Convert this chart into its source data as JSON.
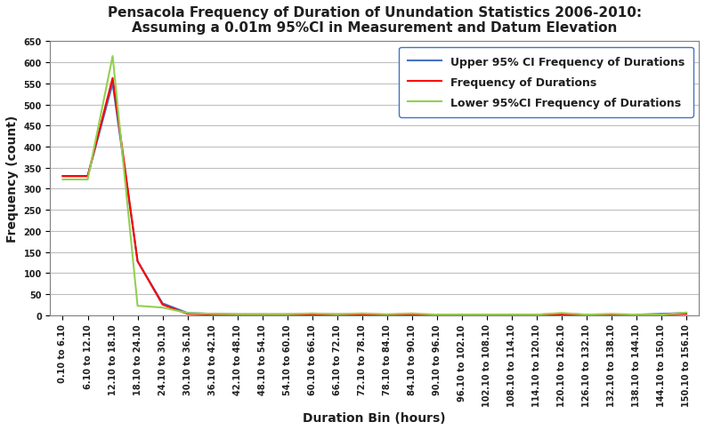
{
  "title": "Pensacola Frequency of Duration of Unundation Statistics 2006-2010:\nAssuming a 0.01m 95%CI in Measurement and Datum Elevation",
  "xlabel": "Duration Bin (hours)",
  "ylabel": "Frequency (count)",
  "ylim": [
    0,
    650
  ],
  "yticks": [
    0,
    50,
    100,
    150,
    200,
    250,
    300,
    350,
    400,
    450,
    500,
    550,
    600,
    650
  ],
  "legend_labels": [
    "Upper 95% CI Frequency of Durations",
    "Frequency of Durations",
    "Lower 95%CI Frequency of Durations"
  ],
  "legend_colors": [
    "#4472C4",
    "#FF0000",
    "#92D050"
  ],
  "categories": [
    "0.10 to 6.10",
    "6.10 to 12.10",
    "12.10 to 18.10",
    "18.10 to 24.10",
    "24.10 to 30.10",
    "30.10 to 36.10",
    "36.10 to 42.10",
    "42.10 to 48.10",
    "48.10 to 54.10",
    "54.10 to 60.10",
    "60.10 to 66.10",
    "66.10 to 72.10",
    "72.10 to 78.10",
    "78.10 to 84.10",
    "84.10 to 90.10",
    "90.10 to 96.10",
    "96.10 to 102.10",
    "102.10 to 108.10",
    "108.10 to 114.10",
    "114.10 to 120.10",
    "120.10 to 126.10",
    "126.10 to 132.10",
    "132.10 to 138.10",
    "138.10 to 144.10",
    "144.10 to 150.10",
    "150.10 to 156.10"
  ],
  "upper_ci": [
    330,
    330,
    550,
    128,
    28,
    5,
    3,
    2,
    2,
    2,
    2,
    2,
    2,
    1,
    2,
    0,
    1,
    1,
    1,
    1,
    3,
    1,
    1,
    1,
    3,
    5
  ],
  "freq": [
    330,
    330,
    563,
    128,
    25,
    3,
    1,
    0,
    1,
    0,
    1,
    0,
    1,
    0,
    0,
    0,
    0,
    0,
    0,
    0,
    1,
    0,
    1,
    0,
    1,
    3
  ],
  "lower_ci": [
    322,
    322,
    615,
    22,
    18,
    5,
    3,
    2,
    2,
    2,
    4,
    2,
    4,
    2,
    4,
    1,
    1,
    1,
    1,
    1,
    5,
    1,
    3,
    1,
    1,
    6
  ],
  "background_color": "#FFFFFF",
  "plot_border_color": "#4472C4",
  "grid_color": "#BFBFBF",
  "title_fontsize": 11,
  "axis_label_fontsize": 10,
  "tick_fontsize": 7,
  "legend_fontsize": 9
}
